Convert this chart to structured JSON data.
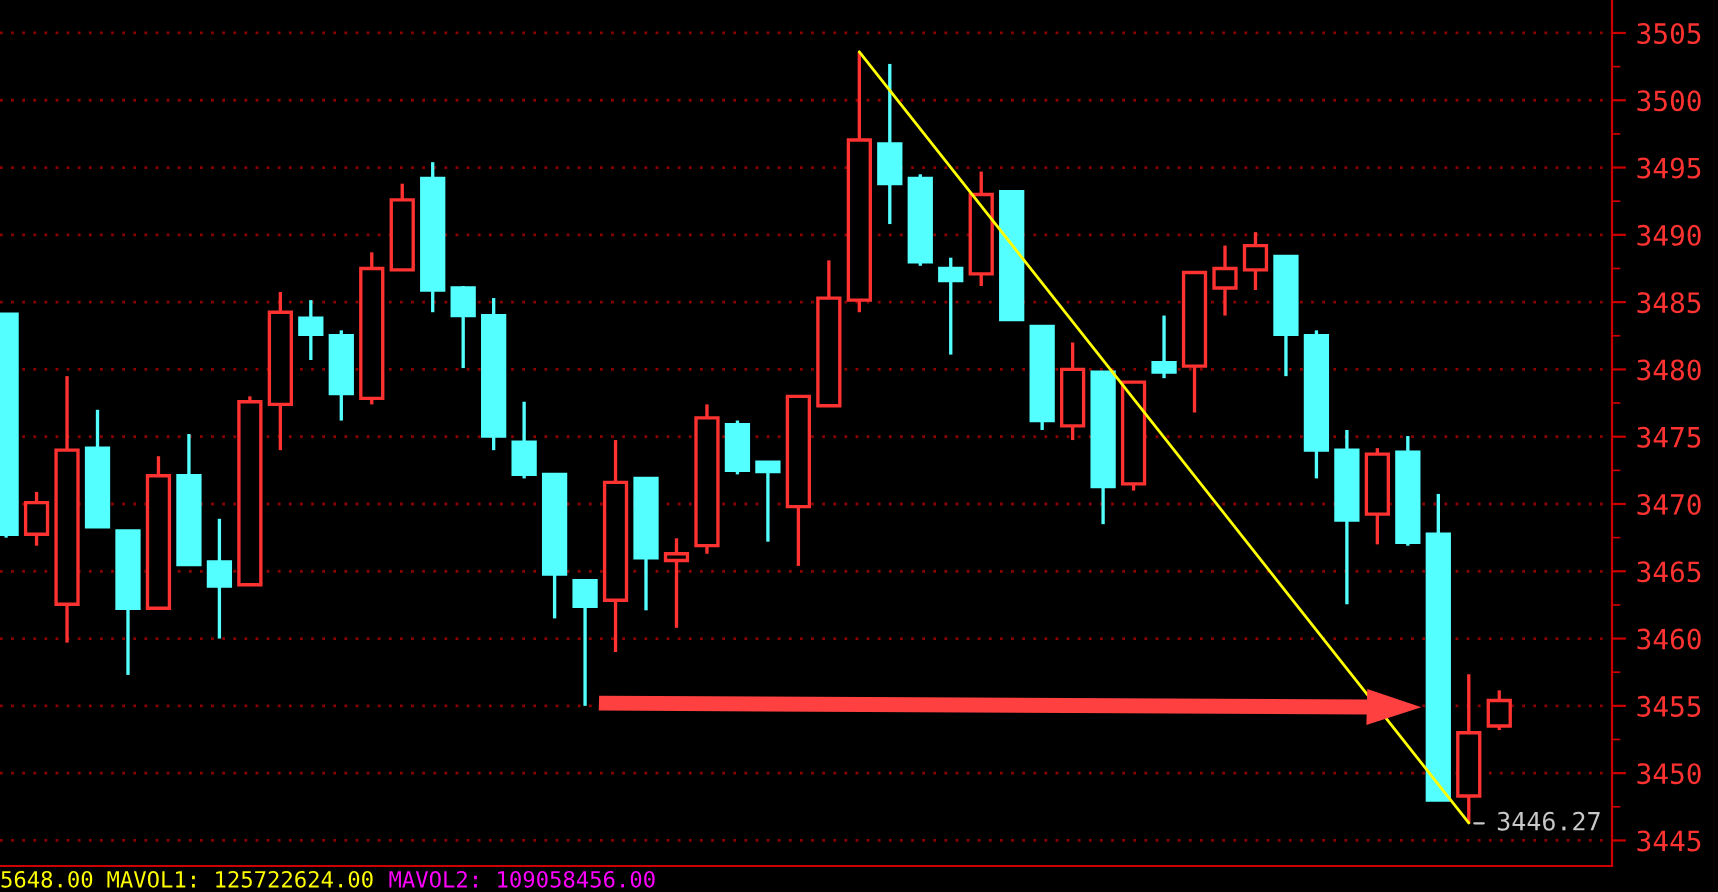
{
  "chart_data": {
    "type": "candlestick",
    "categories": [
      null,
      null,
      null,
      null,
      null,
      null,
      null,
      null,
      null,
      null,
      null,
      null,
      null,
      null,
      null,
      null,
      null,
      null,
      null,
      null,
      null,
      null,
      null,
      null,
      null,
      null,
      null,
      null,
      null,
      null,
      null,
      null,
      null,
      null,
      null,
      null,
      null,
      null,
      null,
      null,
      null,
      null,
      null,
      null,
      null,
      null,
      null,
      null,
      null,
      null
    ],
    "ohlc": [
      [
        3484.1,
        3484.1,
        3467.5,
        3467.75
      ],
      [
        3467.75,
        3470.9,
        3466.9,
        3470.1
      ],
      [
        3462.55,
        3479.5,
        3459.7,
        3474.0
      ],
      [
        3474.15,
        3477.0,
        3468.3,
        3468.3
      ],
      [
        3468.0,
        3468.0,
        3457.3,
        3462.25
      ],
      [
        3462.25,
        3473.55,
        3462.25,
        3472.1
      ],
      [
        3472.1,
        3475.2,
        3465.4,
        3465.5
      ],
      [
        3465.7,
        3468.9,
        3460.0,
        3463.9
      ],
      [
        3464.0,
        3478.0,
        3464.0,
        3477.6
      ],
      [
        3477.4,
        3485.75,
        3474.0,
        3484.25
      ],
      [
        3483.8,
        3485.15,
        3480.7,
        3482.6
      ],
      [
        3482.5,
        3482.9,
        3476.2,
        3478.2
      ],
      [
        3477.85,
        3488.7,
        3477.4,
        3487.5
      ],
      [
        3487.4,
        3493.8,
        3487.4,
        3492.6
      ],
      [
        3494.2,
        3495.4,
        3484.25,
        3485.9
      ],
      [
        3486.05,
        3486.2,
        3480.1,
        3484.0
      ],
      [
        3484.0,
        3485.3,
        3474.0,
        3475.05
      ],
      [
        3474.6,
        3477.6,
        3471.9,
        3472.2
      ],
      [
        3472.2,
        3472.2,
        3461.5,
        3464.8
      ],
      [
        3464.3,
        3464.3,
        3455.0,
        3462.4
      ],
      [
        3462.85,
        3474.75,
        3459.0,
        3471.6
      ],
      [
        3471.9,
        3471.9,
        3462.1,
        3466.0
      ],
      [
        3465.8,
        3467.45,
        3460.8,
        3466.3
      ],
      [
        3466.9,
        3477.4,
        3466.3,
        3476.4
      ],
      [
        3475.9,
        3476.2,
        3472.2,
        3472.5
      ],
      [
        3473.1,
        3473.1,
        3467.2,
        3472.4
      ],
      [
        3469.8,
        3478.0,
        3465.4,
        3478.0
      ],
      [
        3477.3,
        3488.1,
        3477.3,
        3485.3
      ],
      [
        3485.15,
        3503.6,
        3484.25,
        3497.05
      ],
      [
        3496.75,
        3502.7,
        3490.8,
        3493.8
      ],
      [
        3494.2,
        3494.5,
        3487.7,
        3488.0
      ],
      [
        3487.5,
        3488.3,
        3481.1,
        3486.6
      ],
      [
        3487.1,
        3494.7,
        3486.2,
        3493.0
      ],
      [
        3493.2,
        3493.2,
        3483.7,
        3483.7
      ],
      [
        3483.2,
        3483.2,
        3475.5,
        3476.2
      ],
      [
        3475.8,
        3482.0,
        3474.75,
        3480.0
      ],
      [
        3479.8,
        3479.8,
        3468.5,
        3471.3
      ],
      [
        3471.5,
        3479.05,
        3471.0,
        3479.05
      ],
      [
        3480.5,
        3484.0,
        3479.35,
        3479.8
      ],
      [
        3480.25,
        3487.2,
        3476.8,
        3487.2
      ],
      [
        3486.05,
        3489.2,
        3484.0,
        3487.5
      ],
      [
        3487.4,
        3490.2,
        3485.9,
        3489.2
      ],
      [
        3488.4,
        3488.4,
        3479.5,
        3482.6
      ],
      [
        3482.5,
        3482.9,
        3471.9,
        3474.0
      ],
      [
        3474.0,
        3475.5,
        3462.55,
        3468.8
      ],
      [
        3469.25,
        3474.15,
        3467.0,
        3473.7
      ],
      [
        3473.85,
        3475.05,
        3466.9,
        3467.15
      ],
      [
        3467.75,
        3470.75,
        3448.0,
        3448.0
      ],
      [
        3448.3,
        3457.35,
        3446.27,
        3453.0
      ],
      [
        3453.5,
        3456.15,
        3453.2,
        3455.4
      ]
    ],
    "colors": [
      "#54ffff",
      "#ff3232",
      "#ff3232",
      "#54ffff",
      "#54ffff",
      "#ff3232",
      "#54ffff",
      "#54ffff",
      "#ff3232",
      "#ff3232",
      "#54ffff",
      "#54ffff",
      "#ff3232",
      "#ff3232",
      "#54ffff",
      "#54ffff",
      "#54ffff",
      "#54ffff",
      "#54ffff",
      "#54ffff",
      "#ff3232",
      "#54ffff",
      "#ff3232",
      "#ff3232",
      "#54ffff",
      "#54ffff",
      "#ff3232",
      "#ff3232",
      "#ff3232",
      "#54ffff",
      "#54ffff",
      "#54ffff",
      "#ff3232",
      "#54ffff",
      "#54ffff",
      "#ff3232",
      "#54ffff",
      "#ff3232",
      "#54ffff",
      "#ff3232",
      "#ff3232",
      "#ff3232",
      "#54ffff",
      "#54ffff",
      "#54ffff",
      "#ff3232",
      "#54ffff",
      "#54ffff",
      "#ff3232",
      "#ff3232"
    ],
    "series": [
      {
        "type": "line",
        "color": "#ffff00",
        "values": [
          null,
          null,
          null,
          null,
          null,
          null,
          null,
          null,
          null,
          null,
          null,
          null,
          null,
          null,
          null,
          null,
          null,
          null,
          null,
          null,
          null,
          null,
          null,
          null,
          null,
          null,
          null,
          null,
          3503.6,
          null,
          null,
          null,
          null,
          null,
          null,
          null,
          null,
          null,
          null,
          null,
          null,
          null,
          null,
          null,
          null,
          null,
          null,
          null,
          3446.3,
          null
        ]
      }
    ],
    "ylim": [
      3443.1,
      3507.45
    ],
    "yticks": [
      3445,
      3450,
      3455,
      3460,
      3465,
      3470,
      3475,
      3480,
      3485,
      3490,
      3495,
      3500,
      3505
    ],
    "grid": "y",
    "annotations": [
      "3446.27",
      "5648.00",
      "MAVOL1: 125722624.00",
      "MAVOL2: 109058456.00"
    ]
  }
}
